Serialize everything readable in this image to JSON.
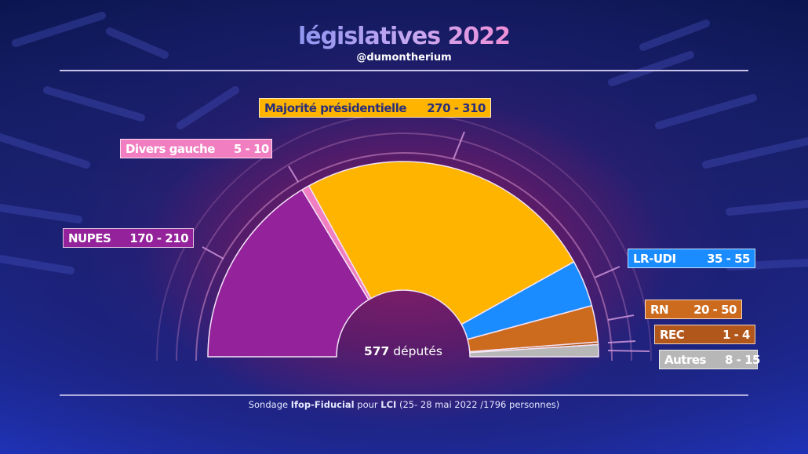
{
  "header": {
    "title_word": "législatives",
    "title_year": "2022",
    "handle": "@dumontherium"
  },
  "center": {
    "total_seats": "577",
    "seats_label": "députés"
  },
  "footer": {
    "prefix": "Sondage",
    "pollster": "Ifop-Fiducial",
    "mid": "pour",
    "channel": "LCI",
    "details": "(25- 28 mai 2022 /1796 personnes)"
  },
  "chart_data": {
    "type": "pie",
    "subtype": "hemicycle",
    "title": "législatives 2022",
    "total": 577,
    "series": [
      {
        "name": "NUPES",
        "range_label": "170 - 210",
        "low": 170,
        "high": 210,
        "color": "#93229b",
        "text_color": "#ffffff"
      },
      {
        "name": "Divers gauche",
        "range_label": "5 - 10",
        "low": 5,
        "high": 10,
        "color": "#f07ec0",
        "text_color": "#ffffff"
      },
      {
        "name": "Majorité présidentielle",
        "range_label": "270 - 310",
        "low": 270,
        "high": 310,
        "color": "#ffb400",
        "text_color": "#2a2f7a"
      },
      {
        "name": "LR-UDI",
        "range_label": "35 - 55",
        "low": 35,
        "high": 55,
        "color": "#1a8cff",
        "text_color": "#ffffff"
      },
      {
        "name": "RN",
        "range_label": "20 - 50",
        "low": 20,
        "high": 50,
        "color": "#cc6a1e",
        "text_color": "#ffffff"
      },
      {
        "name": "REC",
        "range_label": "1 - 4",
        "low": 1,
        "high": 4,
        "color": "#b2571b",
        "text_color": "#ffffff"
      },
      {
        "name": "Autres",
        "range_label": "8 - 15",
        "low": 8,
        "high": 15,
        "color": "#b7b7b7",
        "text_color": "#ffffff"
      }
    ]
  }
}
